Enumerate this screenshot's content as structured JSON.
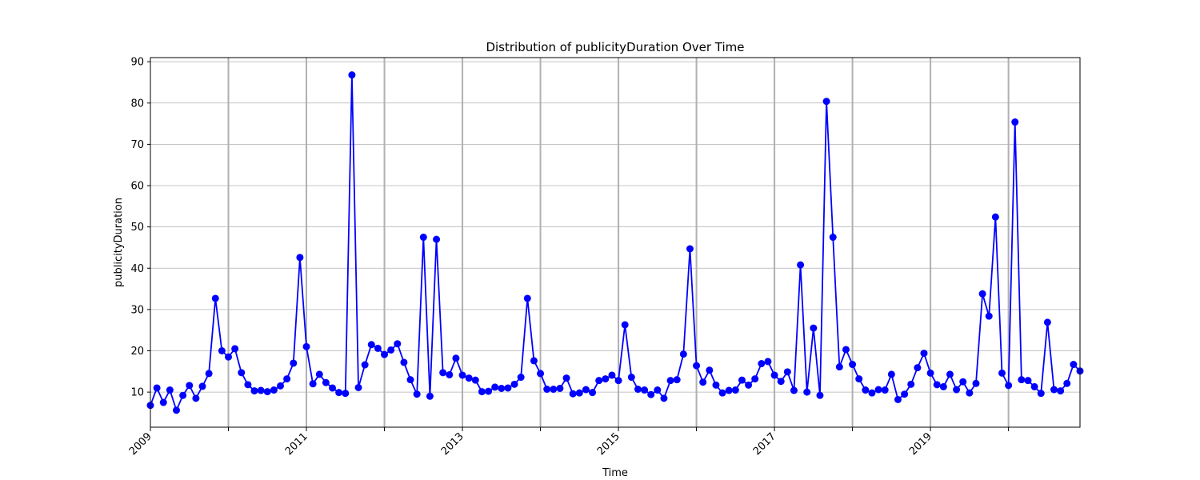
{
  "chart_data": {
    "type": "line",
    "title": "Distribution of publicityDuration Over Time",
    "xlabel": "Time",
    "ylabel": "publicityDuration",
    "x_range": [
      "2009-01",
      "2020-12"
    ],
    "ylim": [
      1.5,
      91
    ],
    "y_ticks": [
      10,
      20,
      30,
      40,
      50,
      60,
      70,
      80,
      90
    ],
    "x_major_ticks": [
      "2009",
      "2010",
      "2011",
      "2012",
      "2013",
      "2014",
      "2015",
      "2016",
      "2017",
      "2018",
      "2019",
      "2020"
    ],
    "x_tick_labels": [
      {
        "year": "2009",
        "label": "2009"
      },
      {
        "year": "2011",
        "label": "2011"
      },
      {
        "year": "2013",
        "label": "2013"
      },
      {
        "year": "2015",
        "label": "2015"
      },
      {
        "year": "2017",
        "label": "2017"
      },
      {
        "year": "2019",
        "label": "2019"
      }
    ],
    "grid": true,
    "line_color": "#0000ff",
    "marker_color": "#0000ff",
    "series": [
      {
        "start": "2009-01",
        "frequency": "monthly",
        "values": [
          6.8,
          11.0,
          7.5,
          10.5,
          5.6,
          9.2,
          11.6,
          8.5,
          11.4,
          14.5,
          32.7,
          20.0,
          18.5,
          20.5,
          14.7,
          11.8,
          10.3,
          10.4,
          10.1,
          10.5,
          11.5,
          13.2,
          17.0,
          42.6,
          21.0,
          12.0,
          14.3,
          12.3,
          11.0,
          9.9,
          9.7,
          86.8,
          11.1,
          16.6,
          21.5,
          20.6,
          19.1,
          20.2,
          21.7,
          17.2,
          13.0,
          9.5,
          47.5,
          9.0,
          47.0,
          14.7,
          14.2,
          18.2,
          14.1,
          13.4,
          12.9,
          10.1,
          10.2,
          11.2,
          10.9,
          11.0,
          11.9,
          13.6,
          32.7,
          17.6,
          14.5,
          10.7,
          10.7,
          10.9,
          13.4,
          9.6,
          9.8,
          10.6,
          9.9,
          12.8,
          13.2,
          14.1,
          12.8,
          26.3,
          13.6,
          10.7,
          10.5,
          9.4,
          10.5,
          8.5,
          12.8,
          13.0,
          19.2,
          44.7,
          16.4,
          12.4,
          15.3,
          11.7,
          9.8,
          10.4,
          10.5,
          12.9,
          11.7,
          13.2,
          16.9,
          17.4,
          14.1,
          12.6,
          14.9,
          10.4,
          40.8,
          10.0,
          25.5,
          9.2,
          80.4,
          47.5,
          16.1,
          20.3,
          16.7,
          13.2,
          10.5,
          9.8,
          10.6,
          10.5,
          14.3,
          8.2,
          9.5,
          11.9,
          15.9,
          19.4,
          14.6,
          11.8,
          11.3,
          14.3,
          10.6,
          12.5,
          9.8,
          12.1,
          33.8,
          28.4,
          52.4,
          14.6,
          11.6,
          75.4,
          13.0,
          12.8,
          11.3,
          9.7,
          26.9,
          10.6,
          10.3,
          12.1,
          16.7,
          15.1
        ]
      }
    ]
  }
}
